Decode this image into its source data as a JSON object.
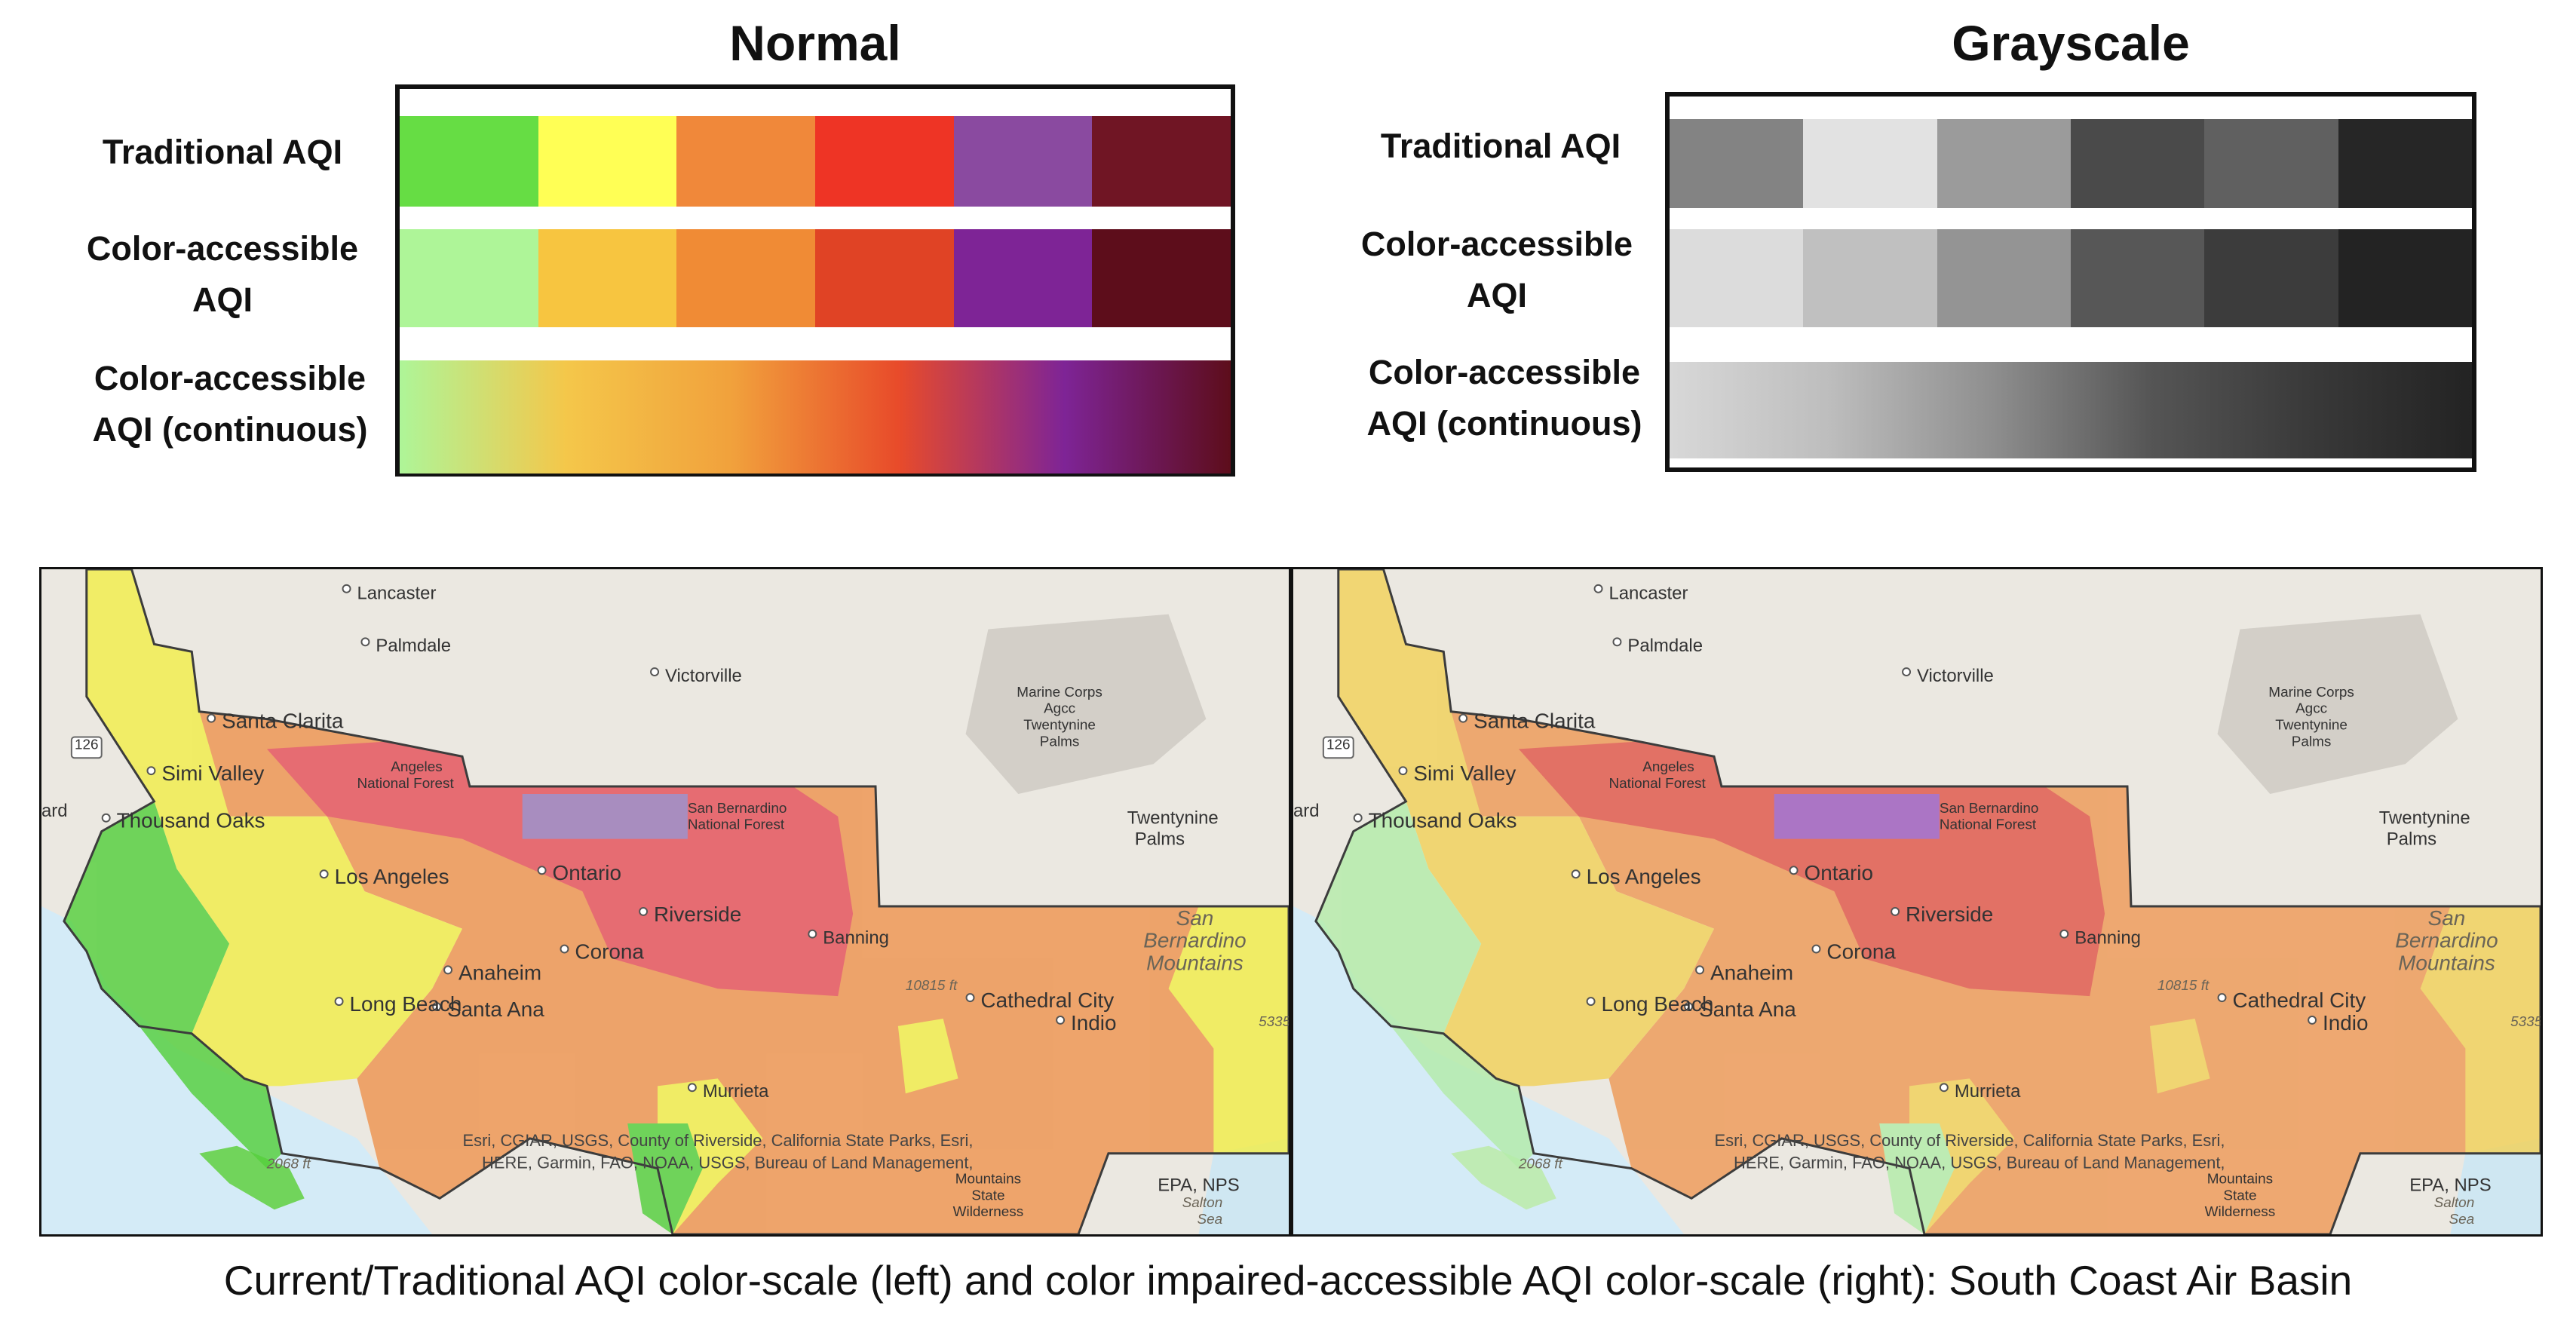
{
  "legend": {
    "normal": {
      "title": "Normal",
      "rows": [
        {
          "label_line1": "Traditional AQI",
          "label_line2": "",
          "type": "discrete",
          "colors": [
            "#66dd44",
            "#ffff55",
            "#f0883a",
            "#ee3425",
            "#8a4aa0",
            "#701524"
          ]
        },
        {
          "label_line1": "Color-accessible",
          "label_line2": "AQI",
          "type": "discrete",
          "colors": [
            "#aef598",
            "#f7c540",
            "#f08b35",
            "#e04325",
            "#7e2496",
            "#5d0d1b"
          ]
        },
        {
          "label_line1": "Color-accessible",
          "label_line2": "AQI (continuous)",
          "type": "continuous",
          "colors": [
            "#aef598",
            "#f4c74a",
            "#f1a13c",
            "#e84b2a",
            "#7e2496",
            "#5d0d1b"
          ]
        }
      ]
    },
    "grayscale": {
      "title": "Grayscale",
      "rows": [
        {
          "label_line1": "Traditional AQI",
          "label_line2": "",
          "type": "discrete",
          "colors": [
            "#838383",
            "#e2e2e2",
            "#9b9b9b",
            "#4a4a4a",
            "#606060",
            "#262626"
          ]
        },
        {
          "label_line1": "Color-accessible",
          "label_line2": "AQI",
          "type": "discrete",
          "colors": [
            "#dcdcdc",
            "#c0c0c0",
            "#949494",
            "#575757",
            "#3c3c3c",
            "#232323"
          ]
        },
        {
          "label_line1": "Color-accessible",
          "label_line2": "AQI (continuous)",
          "type": "continuous",
          "colors": [
            "#d8d8d8",
            "#bdbdbd",
            "#8f8f8f",
            "#555555",
            "#393939",
            "#232323"
          ]
        }
      ]
    }
  },
  "maps": {
    "left": {
      "fill_colors": {
        "good": "#55cf3d",
        "moderate": "#f2ee4a",
        "usg": "#ee9550",
        "unhealthy": "#e6525a",
        "very_unhealthy": "#9a7ab8"
      }
    },
    "right": {
      "fill_colors": {
        "good": "#b4ecaa",
        "moderate": "#f2d25a",
        "usg": "#ee9a58",
        "unhealthy": "#e1574a",
        "very_unhealthy": "#9e5cc0"
      }
    },
    "place_labels": {
      "lancaster": "Lancaster",
      "palmdale": "Palmdale",
      "victorville": "Victorville",
      "marine_corps": "Marine Corps",
      "agcc": "Agcc",
      "twentynine_palms_a": "Twentynine",
      "palms_a": "Palms",
      "santa_clarita": "Santa Clarita",
      "hwy": "126",
      "simi_valley": "Simi Valley",
      "angeles": "Angeles",
      "national_forest_a": "National Forest",
      "ard": "ard",
      "thousand_oaks": "Thousand Oaks",
      "san_bernardino": "San Bernardino",
      "national_forest_b": "National Forest",
      "twentynine_b": "Twentynine",
      "palms_b": "Palms",
      "los_angeles": "Los Angeles",
      "ontario": "Ontario",
      "riverside": "Riverside",
      "san_b_mtn1": "San",
      "san_b_mtn2": "Bernardino",
      "banning": "Banning",
      "corona": "Corona",
      "anaheim": "Anaheim",
      "mountains": "Mountains",
      "peak": "10815 ft",
      "cathedral_city": "Cathedral City",
      "long_beach": "Long Beach",
      "santa_ana": "Santa Ana",
      "indio": "Indio",
      "elev_5335": "5335",
      "murrieta": "Murrieta",
      "elev_2068": "2068 ft",
      "attribution_1": "Esri, CGIAR, USGS, County of Riverside, California State Parks, Esri,",
      "attribution_2": "HERE, Garmin, FAO, NOAA, USGS, Bureau of Land Management,",
      "mountains_b": "Mountains",
      "state": "State",
      "wilderness": "Wilderness",
      "epa_nps": "EPA, NPS",
      "salton": "Salton",
      "sea": "Sea"
    }
  },
  "caption": "Current/Traditional AQI color-scale (left) and color impaired-accessible AQI color-scale (right): South Coast Air Basin"
}
